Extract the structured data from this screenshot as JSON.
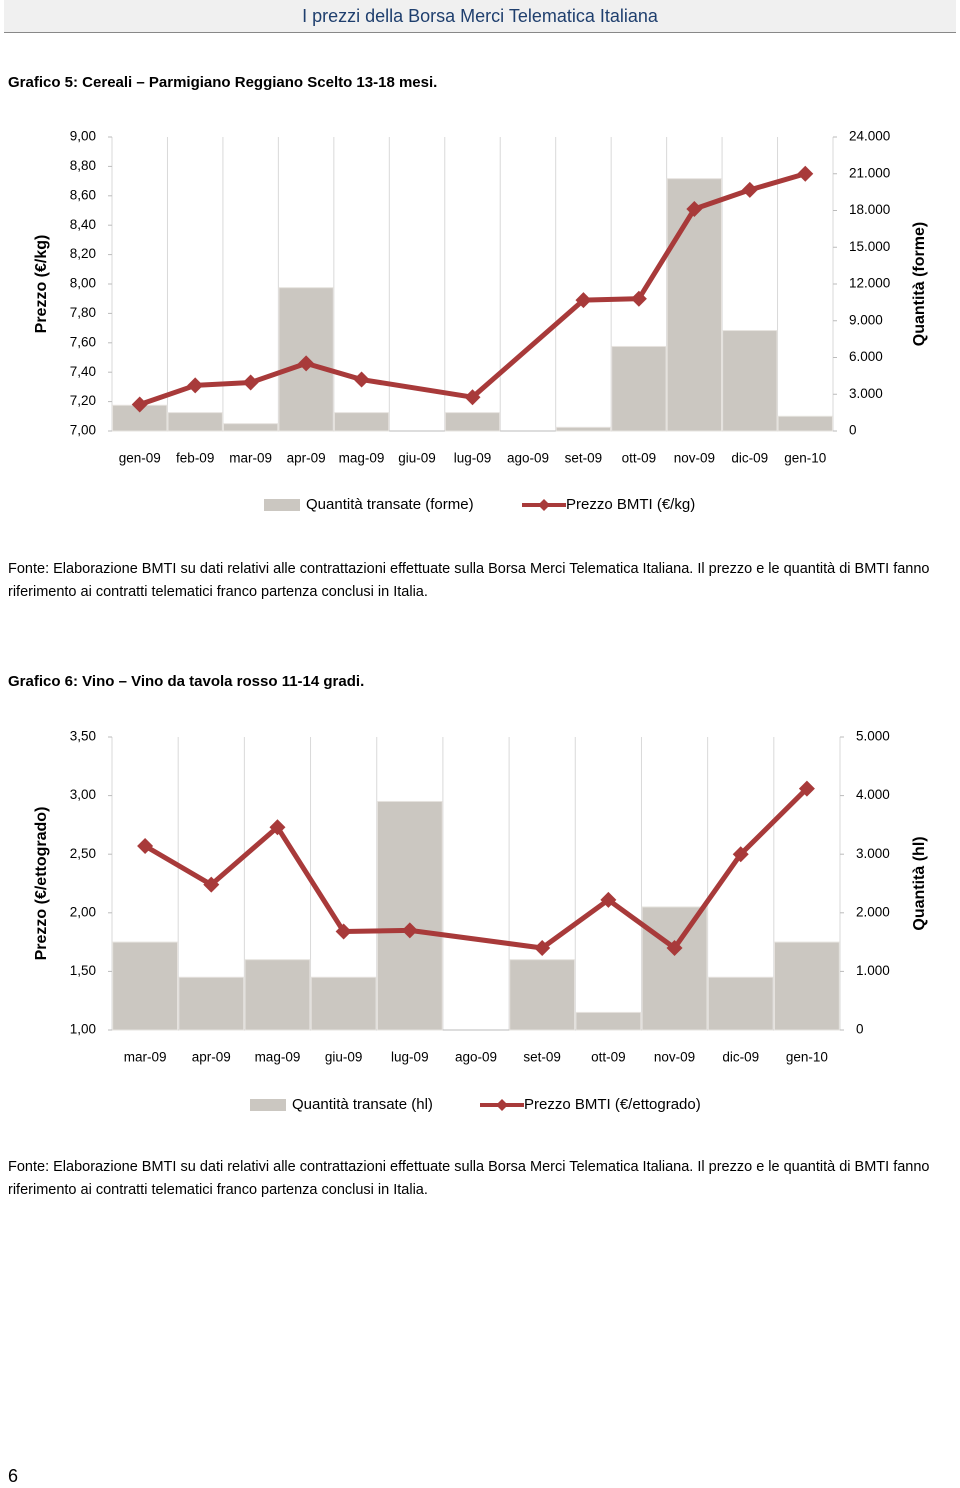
{
  "header": {
    "title": "I prezzi della Borsa Merci Telematica Italiana"
  },
  "sections": [
    {
      "caption": "Grafico 5: Cereali – Parmigiano Reggiano Scelto 13-18 mesi.",
      "source": "Fonte: Elaborazione BMTI su dati relativi alle contrattazioni effettuate sulla Borsa Merci Telematica Italiana. Il prezzo e le quantità di BMTI fanno riferimento ai contratti telematici franco partenza conclusi in Italia."
    },
    {
      "caption": "Grafico 6: Vino – Vino da tavola rosso 11-14 gradi.",
      "source": "Fonte: Elaborazione BMTI su dati relativi alle contrattazioni effettuate sulla Borsa Merci Telematica Italiana. Il prezzo e le quantità di BMTI fanno riferimento ai contratti telematici franco partenza conclusi in Italia."
    }
  ],
  "page_number": "6",
  "chart_data": [
    {
      "type": "bar-line",
      "y_label": "Prezzo (€/kg)",
      "y2_label": "Quantità (forme)",
      "categories": [
        "gen-09",
        "feb-09",
        "mar-09",
        "apr-09",
        "mag-09",
        "giu-09",
        "lug-09",
        "ago-09",
        "set-09",
        "ott-09",
        "nov-09",
        "dic-09",
        "gen-10"
      ],
      "series": [
        {
          "name": "Quantità transate (forme)",
          "type": "bar",
          "axis": "y2",
          "color": "#cbc7c1",
          "values": [
            2100,
            1500,
            600,
            11700,
            1500,
            0,
            1500,
            0,
            300,
            6900,
            20600,
            8200,
            1200
          ]
        },
        {
          "name": "Prezzo BMTI (€/kg)",
          "type": "line",
          "color": "#a83a3a",
          "values": [
            7.18,
            7.31,
            7.33,
            7.46,
            7.35,
            null,
            7.23,
            null,
            7.89,
            7.9,
            8.51,
            8.64,
            8.75
          ]
        }
      ],
      "ylim": [
        7,
        9
      ],
      "yticks": [
        {
          "value": 7,
          "label": "7,00"
        },
        {
          "value": 7.2,
          "label": "7,20"
        },
        {
          "value": 7.4,
          "label": "7,40"
        },
        {
          "value": 7.6,
          "label": "7,60"
        },
        {
          "value": 7.8,
          "label": "7,80"
        },
        {
          "value": 8,
          "label": "8,00"
        },
        {
          "value": 8.2,
          "label": "8,20"
        },
        {
          "value": 8.4,
          "label": "8,40"
        },
        {
          "value": 8.6,
          "label": "8,60"
        },
        {
          "value": 8.8,
          "label": "8,80"
        },
        {
          "value": 9,
          "label": "9,00"
        }
      ],
      "y2lim": [
        0,
        24000
      ],
      "y2ticks": [
        0,
        {
          "value": 3000,
          "label": "3.000"
        },
        {
          "value": 6000,
          "label": "6.000"
        },
        {
          "value": 9000,
          "label": "9.000"
        },
        {
          "value": 12000,
          "label": "12.000"
        },
        {
          "value": 15000,
          "label": "15.000"
        },
        {
          "value": 18000,
          "label": "18.000"
        },
        {
          "value": 21000,
          "label": "21.000"
        },
        {
          "value": 24000,
          "label": "24.000"
        }
      ],
      "legend": "bottom"
    },
    {
      "type": "bar-line",
      "y_label": "Prezzo (€/ettogrado)",
      "y2_label": "Quantità (hl)",
      "categories": [
        "mar-09",
        "apr-09",
        "mag-09",
        "giu-09",
        "lug-09",
        "ago-09",
        "set-09",
        "ott-09",
        "nov-09",
        "dic-09",
        "gen-10"
      ],
      "series": [
        {
          "name": "Quantità transate (hl)",
          "type": "bar",
          "axis": "y2",
          "color": "#cbc7c1",
          "values": [
            1500,
            900,
            1200,
            900,
            3900,
            0,
            1200,
            300,
            2100,
            900,
            1500
          ]
        },
        {
          "name": "Prezzo BMTI (€/ettogrado)",
          "type": "line",
          "color": "#a83a3a",
          "values": [
            2.57,
            2.24,
            2.73,
            1.84,
            1.85,
            null,
            1.7,
            2.11,
            1.7,
            2.5,
            3.06
          ]
        }
      ],
      "ylim": [
        1,
        3.5
      ],
      "yticks": [
        {
          "value": 1,
          "label": "1,00"
        },
        {
          "value": 1.5,
          "label": "1,50"
        },
        {
          "value": 2,
          "label": "2,00"
        },
        {
          "value": 2.5,
          "label": "2,50"
        },
        {
          "value": 3,
          "label": "3,00"
        },
        {
          "value": 3.5,
          "label": "3,50"
        }
      ],
      "y2lim": [
        0,
        5000
      ],
      "y2ticks": [
        0,
        {
          "value": 1000,
          "label": "1.000"
        },
        {
          "value": 2000,
          "label": "2.000"
        },
        {
          "value": 3000,
          "label": "3.000"
        },
        {
          "value": 4000,
          "label": "4.000"
        },
        {
          "value": 5000,
          "label": "5.000"
        }
      ],
      "legend": "bottom"
    }
  ]
}
